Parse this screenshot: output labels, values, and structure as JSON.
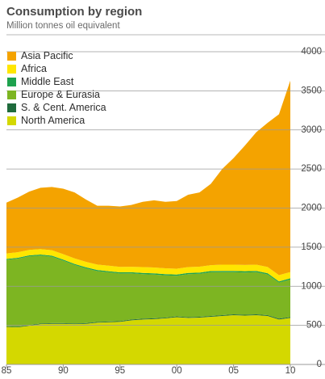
{
  "chart_data": {
    "type": "area",
    "stacked": true,
    "title": "Consumption by region",
    "subtitle": "Million tonnes oil equivalent",
    "xlabel": "",
    "ylabel": "",
    "ylim": [
      0,
      4000
    ],
    "xlim": [
      1985,
      2010
    ],
    "yticks": [
      0,
      500,
      1000,
      1500,
      2000,
      2500,
      3000,
      3500,
      4000
    ],
    "ytick_labels": [
      "0",
      "500",
      "1000",
      "1500",
      "2000",
      "2500",
      "3000",
      "3500",
      "4000"
    ],
    "xticks": [
      1985,
      1990,
      1995,
      2000,
      2005,
      2010
    ],
    "xtick_labels": [
      "85",
      "90",
      "95",
      "00",
      "05",
      "10"
    ],
    "grid": "horizontal",
    "legend_position": "top-left",
    "x": [
      1985,
      1986,
      1987,
      1988,
      1989,
      1990,
      1991,
      1992,
      1993,
      1994,
      1995,
      1996,
      1997,
      1998,
      1999,
      2000,
      2001,
      2002,
      2003,
      2004,
      2005,
      2006,
      2007,
      2008,
      2009,
      2010
    ],
    "series": [
      {
        "name": "North America",
        "color": "#d4d800",
        "values": [
          480,
          475,
          495,
          515,
          520,
          520,
          515,
          520,
          535,
          540,
          545,
          565,
          575,
          580,
          590,
          605,
          595,
          600,
          610,
          620,
          630,
          625,
          630,
          620,
          575,
          595
        ]
      },
      {
        "name": "S. & Cent. America",
        "color": "#1f6b3c",
        "values": [
          8,
          8,
          8,
          8,
          8,
          8,
          8,
          9,
          9,
          9,
          9,
          10,
          10,
          10,
          10,
          10,
          10,
          10,
          10,
          11,
          11,
          11,
          11,
          11,
          11,
          11
        ]
      },
      {
        "name": "Europe & Eurasia",
        "color": "#7db522",
        "values": [
          850,
          870,
          880,
          870,
          850,
          800,
          750,
          700,
          650,
          630,
          610,
          590,
          570,
          560,
          540,
          520,
          550,
          550,
          560,
          550,
          540,
          540,
          540,
          520,
          460,
          480
        ]
      },
      {
        "name": "Middle East",
        "color": "#1ea24e",
        "values": [
          12,
          12,
          12,
          13,
          13,
          13,
          13,
          14,
          14,
          14,
          14,
          14,
          15,
          15,
          15,
          15,
          15,
          15,
          15,
          16,
          16,
          16,
          16,
          16,
          16,
          16
        ]
      },
      {
        "name": "Africa",
        "color": "#ffe600",
        "values": [
          70,
          70,
          70,
          70,
          70,
          70,
          70,
          70,
          70,
          70,
          70,
          70,
          75,
          75,
          75,
          75,
          75,
          75,
          75,
          80,
          80,
          80,
          80,
          80,
          80,
          80
        ]
      },
      {
        "name": "Asia Pacific",
        "color": "#f4a300",
        "values": [
          650,
          700,
          745,
          784,
          809,
          837,
          844,
          797,
          752,
          767,
          772,
          791,
          835,
          860,
          850,
          865,
          925,
          950,
          1040,
          1223,
          1363,
          1528,
          1693,
          1843,
          2058,
          2448
        ]
      }
    ]
  }
}
